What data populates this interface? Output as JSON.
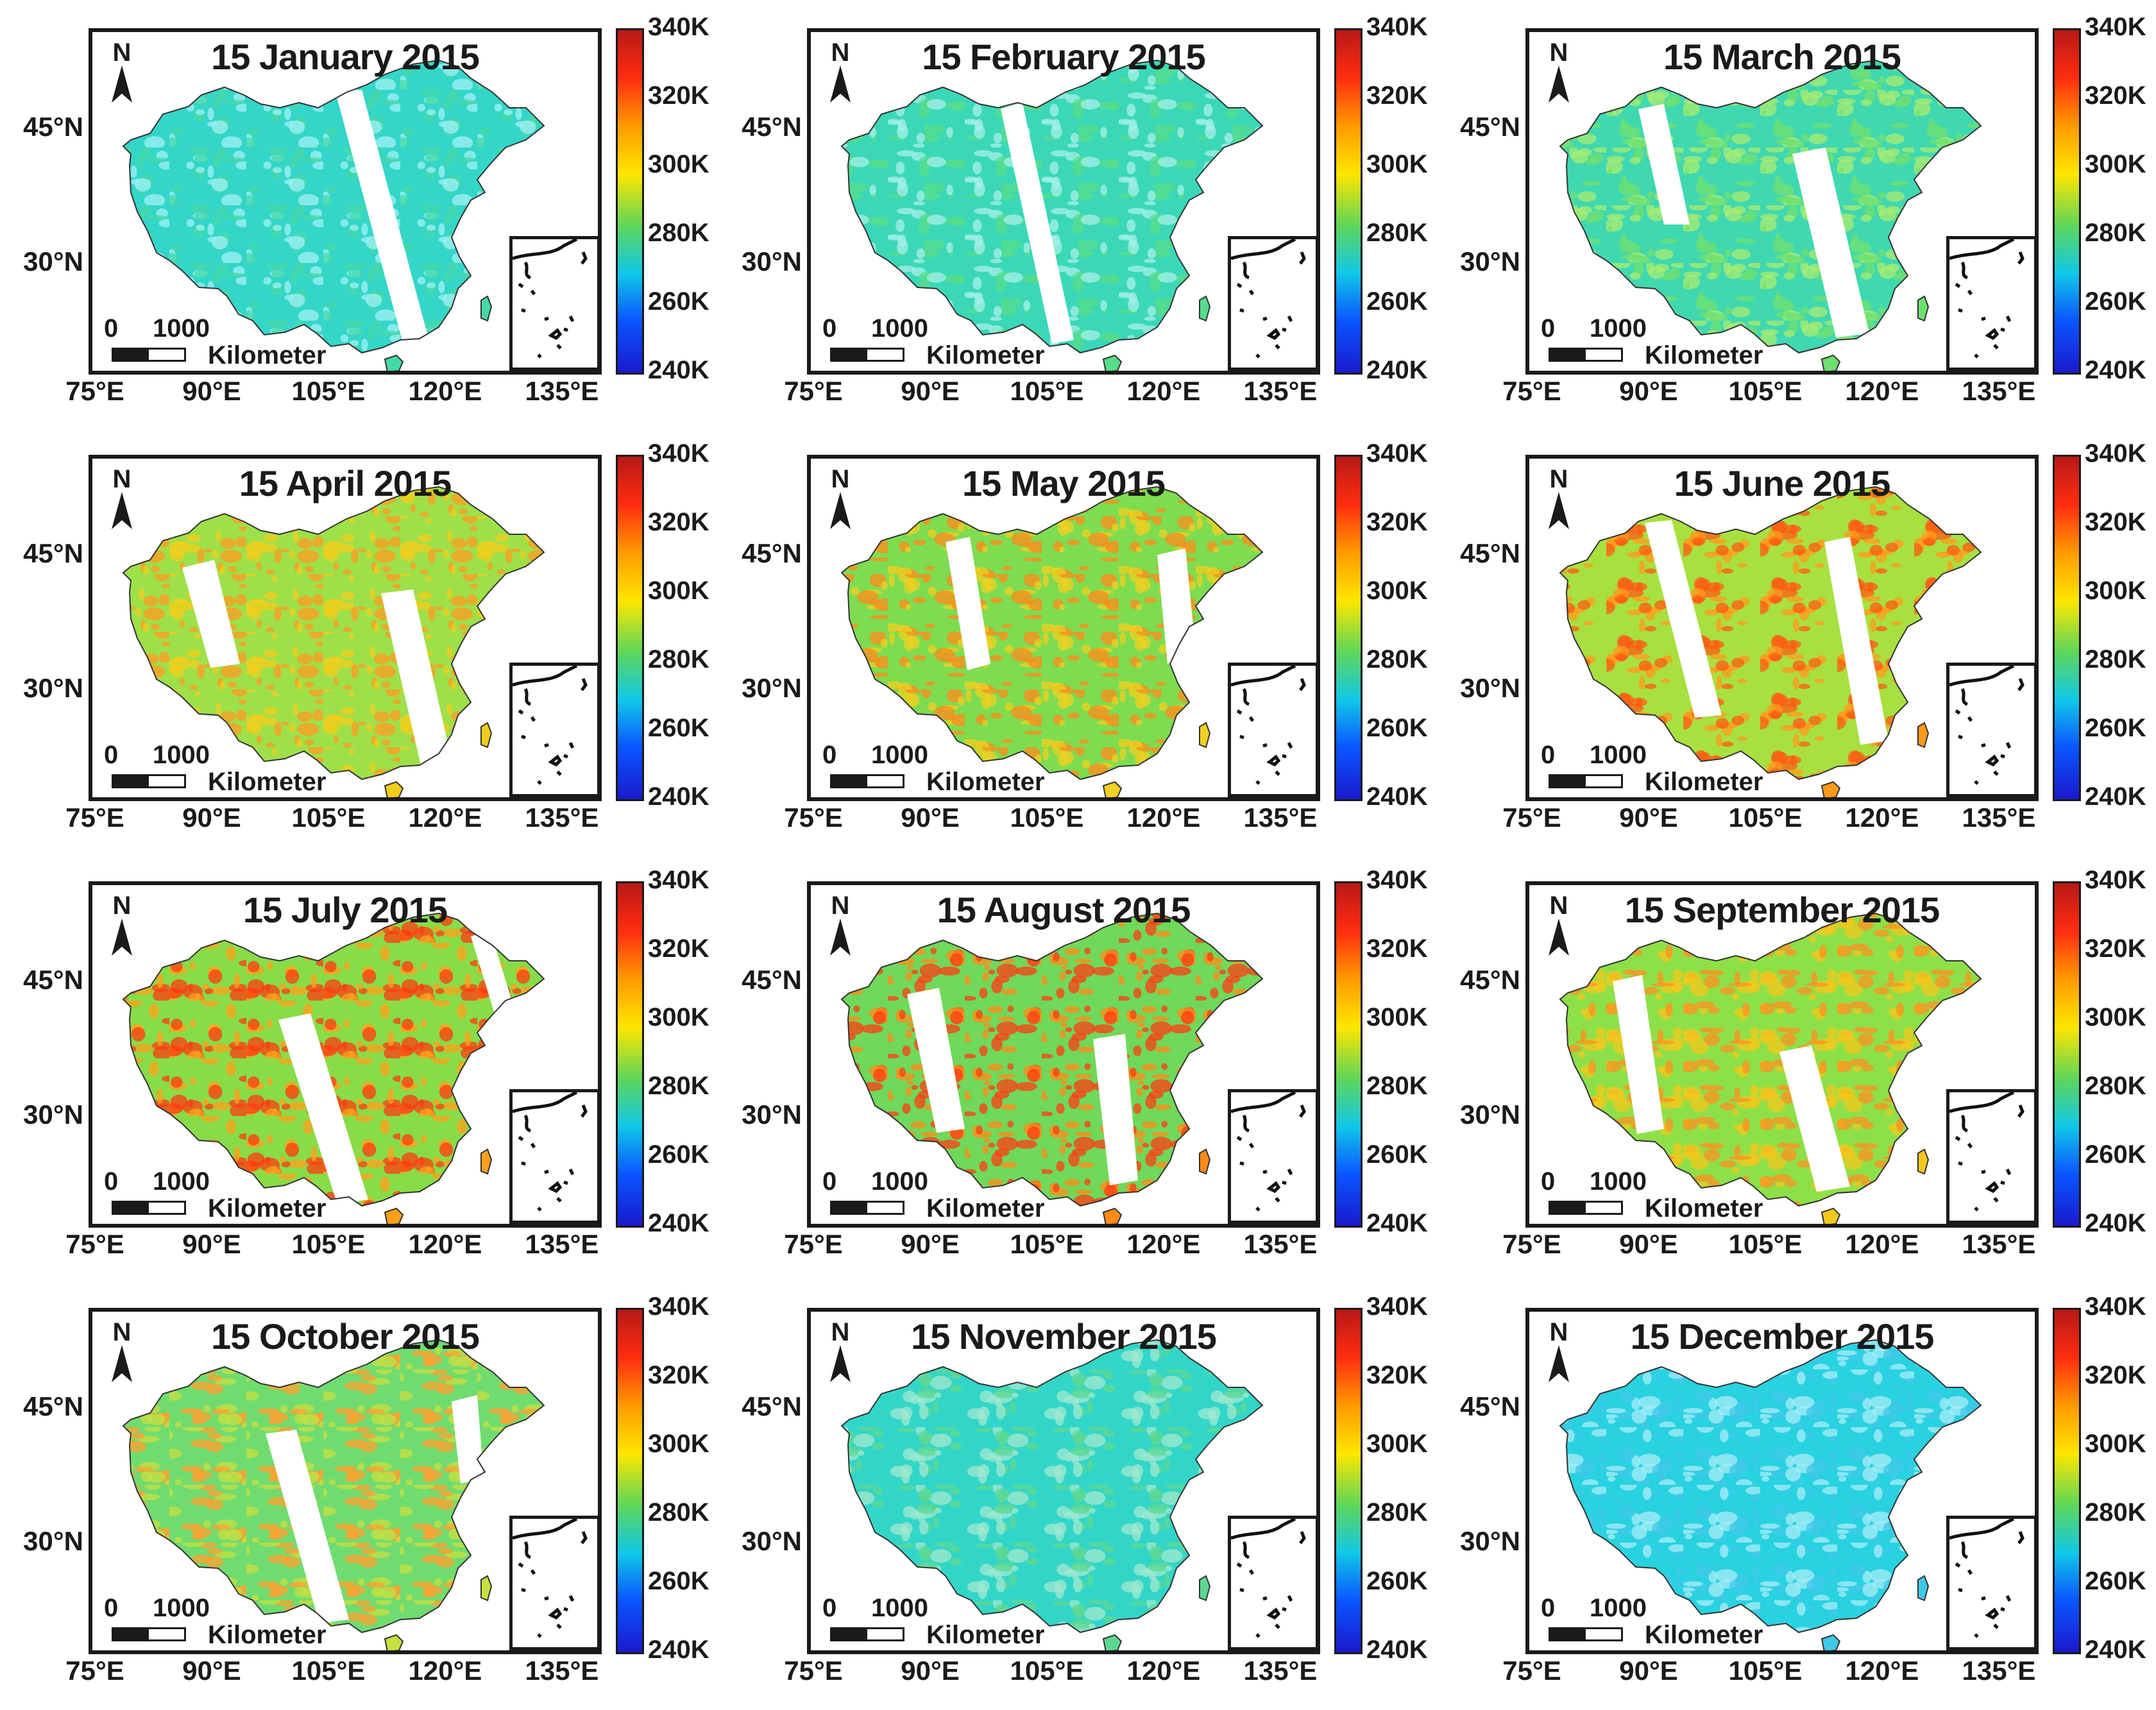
{
  "figure": {
    "panels": [
      {
        "title": "15 January 2015",
        "stripe": "v1",
        "month": 1
      },
      {
        "title": "15 February 2015",
        "stripe": "v2",
        "month": 2
      },
      {
        "title": "15 March 2015",
        "stripe": "v3",
        "month": 3
      },
      {
        "title": "15 April 2015",
        "stripe": "v4",
        "month": 4
      },
      {
        "title": "15 May 2015",
        "stripe": "v5",
        "month": 5
      },
      {
        "title": "15 June 2015",
        "stripe": "v6",
        "month": 6
      },
      {
        "title": "15 July 2015",
        "stripe": "v7",
        "month": 7
      },
      {
        "title": "15 August 2015",
        "stripe": "v8",
        "month": 8
      },
      {
        "title": "15 September 2015",
        "stripe": "v9",
        "month": 9
      },
      {
        "title": "15 October 2015",
        "stripe": "v10",
        "month": 10
      },
      {
        "title": "15 November 2015",
        "stripe": "v11",
        "month": 11
      },
      {
        "title": "15 December 2015",
        "stripe": "v12",
        "month": 12
      }
    ],
    "north_label": "N",
    "latitude_labels": [
      "45°N",
      "30°N"
    ],
    "longitude_labels": [
      "75°E",
      "90°E",
      "105°E",
      "120°E",
      "135°E"
    ],
    "scale_bar": {
      "zero": "0",
      "max": "1000",
      "unit": "Kilometer"
    },
    "colorbar": {
      "ticks": [
        "340K",
        "320K",
        "300K",
        "280K",
        "260K",
        "240K"
      ],
      "min_K": 240,
      "max_K": 340,
      "colors": [
        "#1a1acc",
        "#0a55ff",
        "#10c8e8",
        "#5fd65a",
        "#ffe600",
        "#ff9a00",
        "#ff2d10",
        "#b81818"
      ]
    },
    "monthly_dominant_colors": {
      "1": [
        "#33d6c8",
        "#45d8a8",
        "#9ef0f5"
      ],
      "2": [
        "#3ad8b8",
        "#55dd8a",
        "#a5f0e8"
      ],
      "3": [
        "#40d8b0",
        "#6ee070",
        "#a8ec70"
      ],
      "4": [
        "#9ee04a",
        "#f2cd1a",
        "#ff9a20"
      ],
      "5": [
        "#7edc50",
        "#f0d020",
        "#ff8a1a"
      ],
      "6": [
        "#a8e040",
        "#ff9a1a",
        "#ff5a12"
      ],
      "7": [
        "#88dc48",
        "#ffa01a",
        "#ff3a10"
      ],
      "8": [
        "#70d85a",
        "#ff8a18",
        "#ff3c12"
      ],
      "9": [
        "#8ee048",
        "#f2c81a",
        "#ff9020"
      ],
      "10": [
        "#70dc70",
        "#c8e040",
        "#ffa030"
      ],
      "11": [
        "#32d6c8",
        "#5ed890",
        "#a0e8d0"
      ],
      "12": [
        "#28d2e0",
        "#40c8e8",
        "#a8ecf6"
      ]
    }
  }
}
